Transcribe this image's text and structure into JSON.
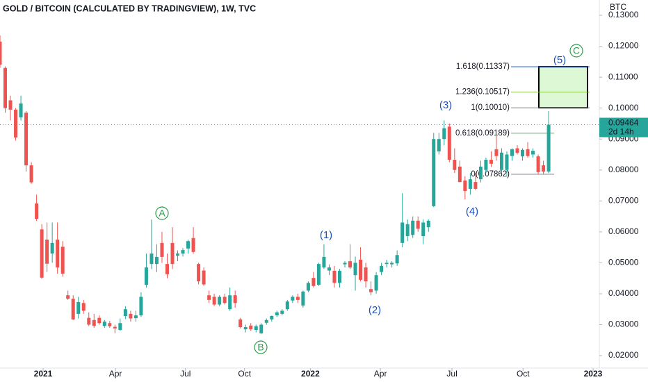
{
  "chart_data": {
    "type": "candlestick",
    "title": "GOLD / BITCOIN (CALCULATED BY TRADINGVIEW), 1W, TVC",
    "y_axis_label": "BTC",
    "up_color": "#26a69a",
    "down_color": "#ef5350",
    "ylim": [
      0.01596,
      0.13494
    ],
    "yticks": [
      {
        "value": 0.02,
        "label": "0.02000"
      },
      {
        "value": 0.03,
        "label": "0.03000"
      },
      {
        "value": 0.04,
        "label": "0.04000"
      },
      {
        "value": 0.05,
        "label": "0.05000"
      },
      {
        "value": 0.06,
        "label": "0.06000"
      },
      {
        "value": 0.07,
        "label": "0.07000"
      },
      {
        "value": 0.08,
        "label": "0.08000"
      },
      {
        "value": 0.09,
        "label": "0.09000"
      },
      {
        "value": 0.1,
        "label": "0.10000"
      },
      {
        "value": 0.11,
        "label": "0.11000"
      },
      {
        "value": 0.12,
        "label": "0.12000"
      },
      {
        "value": 0.13,
        "label": "0.13000"
      }
    ],
    "xlim": [
      0,
      114.7
    ],
    "xticks": [
      {
        "value": 8.25,
        "label": "2021"
      },
      {
        "value": 22.1,
        "label": "Apr"
      },
      {
        "value": 35.5,
        "label": "Jul"
      },
      {
        "value": 46.8,
        "label": "Oct"
      },
      {
        "value": 59.4,
        "label": "2022"
      },
      {
        "value": 72.8,
        "label": "Apr"
      },
      {
        "value": 86.5,
        "label": "Jul"
      },
      {
        "value": 100.1,
        "label": "Oct"
      },
      {
        "value": 113.5,
        "label": "2023"
      }
    ],
    "ohlc": [
      [
        0.1215,
        0.1235,
        0.113,
        0.114
      ],
      [
        0.113,
        0.1135,
        0.0985,
        0.1
      ],
      [
        0.1025,
        0.104,
        0.096,
        0.0995
      ],
      [
        0.0995,
        0.1,
        0.0895,
        0.0905
      ],
      [
        0.097,
        0.104,
        0.096,
        0.1015
      ],
      [
        0.0985,
        0.099,
        0.0795,
        0.0815
      ],
      [
        0.0815,
        0.0825,
        0.0755,
        0.076
      ],
      [
        0.0692,
        0.072,
        0.0635,
        0.0642
      ],
      [
        0.0608,
        0.0625,
        0.0448,
        0.0452
      ],
      [
        0.0575,
        0.063,
        0.047,
        0.0497
      ],
      [
        0.053,
        0.063,
        0.05,
        0.0564
      ],
      [
        0.0575,
        0.063,
        0.0465,
        0.0485
      ],
      [
        0.0552,
        0.057,
        0.0455,
        0.0465
      ],
      [
        0.0395,
        0.041,
        0.038,
        0.0384
      ],
      [
        0.0384,
        0.0395,
        0.0315,
        0.0317
      ],
      [
        0.0335,
        0.039,
        0.032,
        0.0373
      ],
      [
        0.037,
        0.038,
        0.0335,
        0.0345
      ],
      [
        0.0322,
        0.034,
        0.0295,
        0.03
      ],
      [
        0.0315,
        0.0335,
        0.029,
        0.0296
      ],
      [
        0.0322,
        0.033,
        0.03,
        0.0305
      ],
      [
        0.0296,
        0.0315,
        0.029,
        0.031
      ],
      [
        0.0305,
        0.0312,
        0.029,
        0.0295
      ],
      [
        0.0293,
        0.03,
        0.0272,
        0.0288
      ],
      [
        0.0283,
        0.032,
        0.028,
        0.0305
      ],
      [
        0.0328,
        0.036,
        0.0318,
        0.035
      ],
      [
        0.0335,
        0.0345,
        0.031,
        0.032
      ],
      [
        0.0321,
        0.0345,
        0.031,
        0.033
      ],
      [
        0.033,
        0.0405,
        0.0325,
        0.039
      ],
      [
        0.0429,
        0.053,
        0.042,
        0.0485
      ],
      [
        0.0496,
        0.064,
        0.048,
        0.053
      ],
      [
        0.0496,
        0.056,
        0.047,
        0.0519
      ],
      [
        0.0564,
        0.06,
        0.05,
        0.0519
      ],
      [
        0.0496,
        0.053,
        0.045,
        0.0463
      ],
      [
        0.0564,
        0.0615,
        0.048,
        0.0496
      ],
      [
        0.0523,
        0.054,
        0.0505,
        0.053
      ],
      [
        0.053,
        0.0548,
        0.052,
        0.0541
      ],
      [
        0.0546,
        0.0575,
        0.053,
        0.057
      ],
      [
        0.058,
        0.0615,
        0.053,
        0.0535
      ],
      [
        0.0496,
        0.05,
        0.043,
        0.044
      ],
      [
        0.0475,
        0.0485,
        0.0425,
        0.043
      ],
      [
        0.0395,
        0.041,
        0.037,
        0.038
      ],
      [
        0.039,
        0.04,
        0.036,
        0.0365
      ],
      [
        0.0365,
        0.0395,
        0.036,
        0.039
      ],
      [
        0.039,
        0.04,
        0.0365,
        0.037
      ],
      [
        0.035,
        0.042,
        0.0345,
        0.0395
      ],
      [
        0.0395,
        0.041,
        0.0355,
        0.037
      ],
      [
        0.0317,
        0.0322,
        0.0288,
        0.0292
      ],
      [
        0.0285,
        0.03,
        0.0275,
        0.0292
      ],
      [
        0.0297,
        0.0305,
        0.028,
        0.0285
      ],
      [
        0.0283,
        0.03,
        0.0275,
        0.0295
      ],
      [
        0.0272,
        0.0305,
        0.027,
        0.03
      ],
      [
        0.0306,
        0.032,
        0.03,
        0.0315
      ],
      [
        0.0317,
        0.033,
        0.031,
        0.0328
      ],
      [
        0.033,
        0.0345,
        0.0325,
        0.034
      ],
      [
        0.0335,
        0.035,
        0.033,
        0.0345
      ],
      [
        0.035,
        0.038,
        0.0345,
        0.0375
      ],
      [
        0.0378,
        0.0395,
        0.037,
        0.039
      ],
      [
        0.039,
        0.04,
        0.037,
        0.038
      ],
      [
        0.0362,
        0.041,
        0.0355,
        0.0407
      ],
      [
        0.041,
        0.044,
        0.0405,
        0.0435
      ],
      [
        0.0451,
        0.047,
        0.042,
        0.0425
      ],
      [
        0.0429,
        0.05,
        0.0425,
        0.0496
      ],
      [
        0.0485,
        0.056,
        0.048,
        0.0519
      ],
      [
        0.0475,
        0.0495,
        0.046,
        0.0485
      ],
      [
        0.0474,
        0.049,
        0.042,
        0.0435
      ],
      [
        0.0435,
        0.048,
        0.042,
        0.0474
      ],
      [
        0.0495,
        0.0505,
        0.0485,
        0.05
      ],
      [
        0.0505,
        0.056,
        0.048,
        0.0485
      ],
      [
        0.046,
        0.052,
        0.041,
        0.05
      ],
      [
        0.051,
        0.055,
        0.044,
        0.0445
      ],
      [
        0.0485,
        0.05,
        0.042,
        0.044
      ],
      [
        0.0415,
        0.044,
        0.0395,
        0.0405
      ],
      [
        0.041,
        0.047,
        0.04,
        0.046
      ],
      [
        0.047,
        0.05,
        0.046,
        0.049
      ],
      [
        0.0496,
        0.051,
        0.0485,
        0.05
      ],
      [
        0.0495,
        0.0505,
        0.0485,
        0.05
      ],
      [
        0.0498,
        0.054,
        0.049,
        0.0525
      ],
      [
        0.0564,
        0.0725,
        0.055,
        0.063
      ],
      [
        0.0586,
        0.064,
        0.057,
        0.0625
      ],
      [
        0.059,
        0.065,
        0.058,
        0.0636
      ],
      [
        0.0636,
        0.065,
        0.06,
        0.061
      ],
      [
        0.0586,
        0.064,
        0.056,
        0.063
      ],
      [
        0.0615,
        0.064,
        0.06,
        0.0636
      ],
      [
        0.0683,
        0.092,
        0.068,
        0.09
      ],
      [
        0.086,
        0.092,
        0.085,
        0.09
      ],
      [
        0.09,
        0.096,
        0.088,
        0.0935
      ],
      [
        0.094,
        0.095,
        0.0825,
        0.0833
      ],
      [
        0.0833,
        0.087,
        0.079,
        0.08
      ],
      [
        0.0811,
        0.083,
        0.076,
        0.0761
      ],
      [
        0.0766,
        0.078,
        0.0705,
        0.0732
      ],
      [
        0.0739,
        0.079,
        0.072,
        0.077
      ],
      [
        0.0761,
        0.079,
        0.0735,
        0.0739
      ],
      [
        0.077,
        0.083,
        0.076,
        0.0811
      ],
      [
        0.08,
        0.084,
        0.079,
        0.0833
      ],
      [
        0.0833,
        0.086,
        0.081,
        0.082
      ],
      [
        0.0867,
        0.091,
        0.083,
        0.0845
      ],
      [
        0.08,
        0.087,
        0.079,
        0.0856
      ],
      [
        0.08,
        0.086,
        0.078,
        0.085
      ],
      [
        0.0845,
        0.087,
        0.083,
        0.0867
      ],
      [
        0.087,
        0.088,
        0.085,
        0.0855
      ],
      [
        0.0844,
        0.087,
        0.083,
        0.0865
      ],
      [
        0.0867,
        0.089,
        0.084,
        0.0845
      ],
      [
        0.085,
        0.087,
        0.084,
        0.0862
      ],
      [
        0.0844,
        0.085,
        0.0785,
        0.0793
      ],
      [
        0.0815,
        0.083,
        0.0785,
        0.0795
      ],
      [
        0.0795,
        0.099,
        0.079,
        0.09464
      ]
    ],
    "last_price": {
      "value": 0.09464,
      "label": "0.09464"
    },
    "countdown": "2d 14h",
    "fib_levels": [
      {
        "value": 0.11337,
        "label": "1.618(0.11337)",
        "color": "#1e4fc0"
      },
      {
        "value": 0.10517,
        "label": "1.236(0.10517)",
        "color": "#8bc34a"
      },
      {
        "value": 0.1001,
        "label": "1(0.10010)",
        "color": "#787b86"
      },
      {
        "value": 0.09189,
        "label": "0.618(0.09189)",
        "color": "#4caf50"
      },
      {
        "value": 0.07862,
        "label": "0(0.07862)",
        "color": "#787b86"
      }
    ],
    "target_box_color": "#dcf8d4",
    "wave_labels": [
      "(1)",
      "(2)",
      "(3)",
      "(4)",
      "(5)"
    ],
    "circled_labels": [
      "A",
      "B",
      "C"
    ]
  }
}
